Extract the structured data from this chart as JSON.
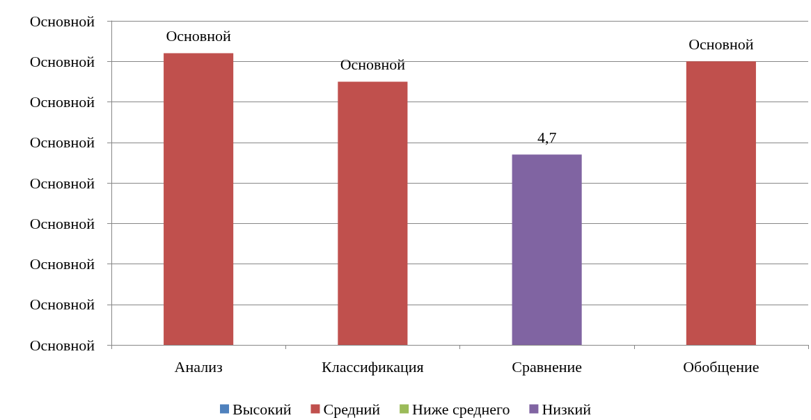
{
  "chart_data": {
    "type": "bar",
    "stacked": true,
    "categories": [
      "Анализ",
      "Классификация",
      "Сравнение",
      "Обобщение"
    ],
    "ylim": [
      0,
      8
    ],
    "tick_labels": "x",
    "annotations": [
      "Основной",
      "Основной",
      "Основной",
      "Основной",
      "Основной",
      "Основной",
      "Основной",
      "Основной",
      "Основной"
    ],
    "series": [
      {
        "name": "Высокий",
        "color": "#4f81bd",
        "values": [
          null,
          null,
          null,
          null
        ]
      },
      {
        "name": "Средний",
        "color": "#c0504d",
        "values": [
          7.2,
          6.5,
          null,
          7.0
        ],
        "value_labels": [
          "Основной",
          "Основной",
          null,
          "Основной"
        ]
      },
      {
        "name": "Ниже среднего",
        "color": "#9bbb59",
        "values": [
          null,
          null,
          null,
          null
        ]
      },
      {
        "name": "Низкий",
        "color": "#8064a2",
        "values": [
          null,
          null,
          4.7,
          null
        ],
        "value_labels": [
          null,
          null,
          "4,7",
          null
        ]
      }
    ],
    "grid": "y",
    "legend": "bottom"
  }
}
